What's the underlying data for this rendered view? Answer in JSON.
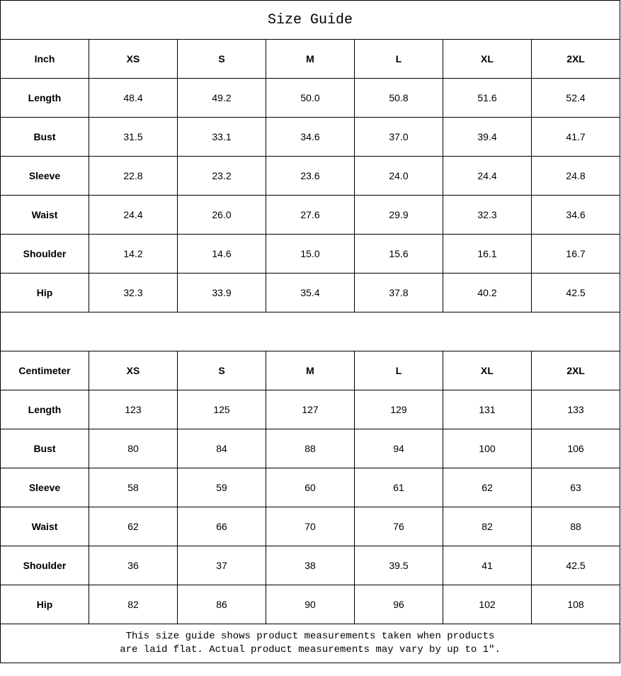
{
  "title": "Size Guide",
  "sizes": [
    "XS",
    "S",
    "M",
    "L",
    "XL",
    "2XL"
  ],
  "inch": {
    "unit": "Inch",
    "rows": [
      {
        "label": "Length",
        "values": [
          "48.4",
          "49.2",
          "50.0",
          "50.8",
          "51.6",
          "52.4"
        ]
      },
      {
        "label": "Bust",
        "values": [
          "31.5",
          "33.1",
          "34.6",
          "37.0",
          "39.4",
          "41.7"
        ]
      },
      {
        "label": "Sleeve",
        "values": [
          "22.8",
          "23.2",
          "23.6",
          "24.0",
          "24.4",
          "24.8"
        ]
      },
      {
        "label": "Waist",
        "values": [
          "24.4",
          "26.0",
          "27.6",
          "29.9",
          "32.3",
          "34.6"
        ]
      },
      {
        "label": "Shoulder",
        "values": [
          "14.2",
          "14.6",
          "15.0",
          "15.6",
          "16.1",
          "16.7"
        ]
      },
      {
        "label": "Hip",
        "values": [
          "32.3",
          "33.9",
          "35.4",
          "37.8",
          "40.2",
          "42.5"
        ]
      }
    ]
  },
  "cm": {
    "unit": "Centimeter",
    "rows": [
      {
        "label": "Length",
        "values": [
          "123",
          "125",
          "127",
          "129",
          "131",
          "133"
        ]
      },
      {
        "label": "Bust",
        "values": [
          "80",
          "84",
          "88",
          "94",
          "100",
          "106"
        ]
      },
      {
        "label": "Sleeve",
        "values": [
          "58",
          "59",
          "60",
          "61",
          "62",
          "63"
        ]
      },
      {
        "label": "Waist",
        "values": [
          "62",
          "66",
          "70",
          "76",
          "82",
          "88"
        ]
      },
      {
        "label": "Shoulder",
        "values": [
          "36",
          "37",
          "38",
          "39.5",
          "41",
          "42.5"
        ]
      },
      {
        "label": "Hip",
        "values": [
          "82",
          "86",
          "90",
          "96",
          "102",
          "108"
        ]
      }
    ]
  },
  "note_line1": "This size guide shows product measurements taken when products",
  "note_line2": "are laid flat. Actual product measurements may vary by up to 1″."
}
